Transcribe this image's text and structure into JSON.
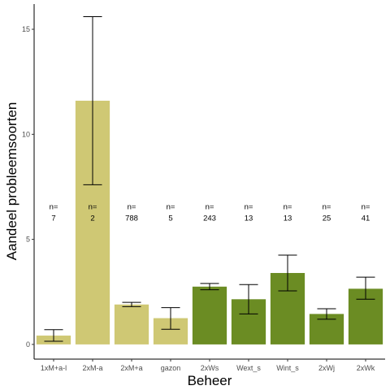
{
  "chart_data": {
    "type": "bar",
    "xlabel": "Beheer",
    "ylabel": "Aandeel probleemsoorten",
    "ylim": [
      -0.7,
      16.2
    ],
    "yticks": [
      0,
      5,
      10,
      15
    ],
    "grid": false,
    "n_label_y": 6.2,
    "colors": {
      "khaki": "#cfc874",
      "green": "#6b8c23"
    },
    "bars": [
      {
        "category": "1xM+a-l",
        "value": 0.42,
        "err_low": 0.15,
        "err_high": 0.7,
        "color": "khaki",
        "n_prefix": "n=",
        "n": "7"
      },
      {
        "category": "2xM-a",
        "value": 11.6,
        "err_low": 7.6,
        "err_high": 15.6,
        "color": "khaki",
        "n_prefix": "n=",
        "n": "2"
      },
      {
        "category": "2xM+a",
        "value": 1.9,
        "err_low": 1.8,
        "err_high": 2.0,
        "color": "khaki",
        "n_prefix": "n=",
        "n": "788"
      },
      {
        "category": "gazon",
        "value": 1.25,
        "err_low": 0.72,
        "err_high": 1.75,
        "color": "khaki",
        "n_prefix": "n=",
        "n": "5"
      },
      {
        "category": "2xWs",
        "value": 2.75,
        "err_low": 2.6,
        "err_high": 2.9,
        "color": "green",
        "n_prefix": "n=",
        "n": "243"
      },
      {
        "category": "Wext_s",
        "value": 2.15,
        "err_low": 1.45,
        "err_high": 2.85,
        "color": "green",
        "n_prefix": "n=",
        "n": "13"
      },
      {
        "category": "Wint_s",
        "value": 3.4,
        "err_low": 2.55,
        "err_high": 4.25,
        "color": "green",
        "n_prefix": "n=",
        "n": "13"
      },
      {
        "category": "2xWj",
        "value": 1.45,
        "err_low": 1.2,
        "err_high": 1.7,
        "color": "green",
        "n_prefix": "n=",
        "n": "25"
      },
      {
        "category": "2xWk",
        "value": 2.65,
        "err_low": 2.15,
        "err_high": 3.2,
        "color": "green",
        "n_prefix": "n=",
        "n": "41"
      }
    ]
  }
}
